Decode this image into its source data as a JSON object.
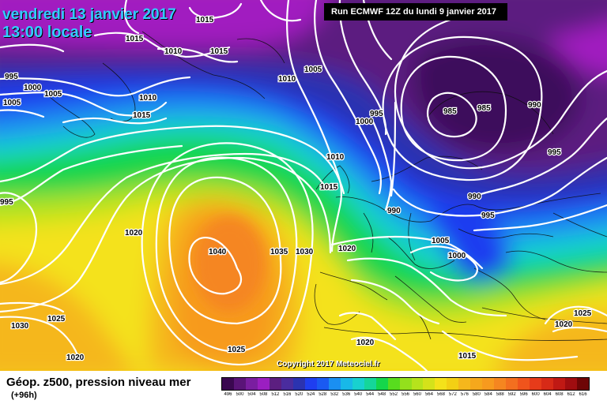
{
  "header": {
    "date_line": "vendredi 13 janvier 2017",
    "time_line": "13:00 locale",
    "run_label": "Run ECMWF 12Z du lundi 9 janvier 2017"
  },
  "footer": {
    "copyright": "Copyright 2017 Meteociel.fr"
  },
  "legend": {
    "title": "Géop. z500, pression niveau mer",
    "lead_time": "(+96h)",
    "scale_values": [
      "496",
      "500",
      "504",
      "508",
      "512",
      "516",
      "520",
      "524",
      "528",
      "532",
      "536",
      "540",
      "544",
      "548",
      "552",
      "556",
      "560",
      "564",
      "568",
      "572",
      "576",
      "580",
      "584",
      "588",
      "592",
      "596",
      "600",
      "604",
      "608",
      "612",
      "616"
    ],
    "scale_colors": [
      "#3a0850",
      "#5a1478",
      "#7a1ea0",
      "#9b1fc1",
      "#5c1f80",
      "#4a2c9e",
      "#2b33b0",
      "#1f3ef0",
      "#1a5af2",
      "#1a8ff2",
      "#18b8e8",
      "#18d1cf",
      "#15d69a",
      "#14d64b",
      "#58dc1e",
      "#94e01c",
      "#b6e31c",
      "#d4e21a",
      "#f4e21a",
      "#f3d014",
      "#f5b71c",
      "#f5a81c",
      "#f79a1e",
      "#f58620",
      "#f36f1f",
      "#f0541c",
      "#e63b1a",
      "#d72a17",
      "#c01914",
      "#a00d10",
      "#6e0506"
    ]
  },
  "isobar_labels": [
    "1015",
    "1015",
    "1010",
    "1015",
    "995",
    "1000",
    "1005",
    "1005",
    "1010",
    "1015",
    "1010",
    "1005",
    "1000",
    "995",
    "1010",
    "1015",
    "990",
    "985",
    "985",
    "990",
    "995",
    "990",
    "995",
    "1005",
    "1000",
    "995",
    "1020",
    "1040",
    "1035",
    "1030",
    "1020",
    "1025",
    "1030",
    "1020",
    "1025",
    "1020",
    "1015",
    "1020",
    "1025"
  ]
}
